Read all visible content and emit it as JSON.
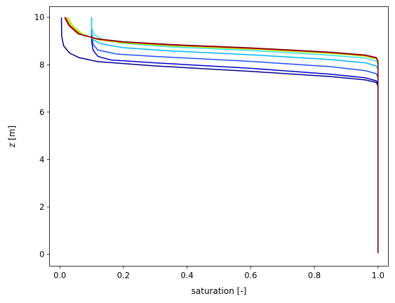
{
  "chart_data": {
    "type": "line",
    "xlabel": "saturation [-]",
    "ylabel": "z [m]",
    "xlim": [
      -0.0325,
      1.0325
    ],
    "ylim": [
      -0.5,
      10.45
    ],
    "grid": false,
    "x_ticks": [
      0.0,
      0.2,
      0.4,
      0.6,
      0.8,
      1.0
    ],
    "x_tick_labels": [
      "0.0",
      "0.2",
      "0.4",
      "0.6",
      "0.8",
      "1.0"
    ],
    "y_ticks": [
      0,
      2,
      4,
      6,
      8,
      10
    ],
    "y_tick_labels": [
      "0",
      "2",
      "4",
      "6",
      "8",
      "10"
    ],
    "series": [
      {
        "color": "#00008b",
        "points": [
          [
            0.005,
            10.0
          ],
          [
            0.006,
            9.2
          ],
          [
            0.012,
            8.8
          ],
          [
            0.03,
            8.5
          ],
          [
            0.06,
            8.3
          ],
          [
            0.12,
            8.13
          ],
          [
            0.3,
            7.95
          ],
          [
            0.6,
            7.72
          ],
          [
            0.85,
            7.5
          ],
          [
            0.96,
            7.36
          ],
          [
            0.995,
            7.25
          ],
          [
            1.0,
            7.1
          ],
          [
            1.0,
            0.05
          ]
        ]
      },
      {
        "color": "#0000cd",
        "points": [
          [
            0.1,
            10.0
          ],
          [
            0.1,
            9.0
          ],
          [
            0.105,
            8.6
          ],
          [
            0.12,
            8.35
          ],
          [
            0.16,
            8.2
          ],
          [
            0.3,
            8.08
          ],
          [
            0.6,
            7.85
          ],
          [
            0.85,
            7.6
          ],
          [
            0.96,
            7.45
          ],
          [
            0.995,
            7.32
          ],
          [
            1.0,
            7.2
          ],
          [
            1.0,
            0.05
          ]
        ]
      },
      {
        "color": "#1e50ff",
        "points": [
          [
            0.1,
            10.0
          ],
          [
            0.1,
            9.2
          ],
          [
            0.105,
            8.85
          ],
          [
            0.12,
            8.62
          ],
          [
            0.18,
            8.45
          ],
          [
            0.3,
            8.35
          ],
          [
            0.6,
            8.14
          ],
          [
            0.85,
            7.92
          ],
          [
            0.96,
            7.75
          ],
          [
            0.995,
            7.62
          ],
          [
            1.0,
            7.45
          ],
          [
            1.0,
            0.05
          ]
        ]
      },
      {
        "color": "#00b4ff",
        "points": [
          [
            0.1,
            10.0
          ],
          [
            0.1,
            9.4
          ],
          [
            0.105,
            9.05
          ],
          [
            0.13,
            8.88
          ],
          [
            0.2,
            8.72
          ],
          [
            0.35,
            8.58
          ],
          [
            0.6,
            8.42
          ],
          [
            0.85,
            8.22
          ],
          [
            0.96,
            8.08
          ],
          [
            0.995,
            7.95
          ],
          [
            1.0,
            7.8
          ],
          [
            1.0,
            0.05
          ]
        ]
      },
      {
        "color": "#40e0d0",
        "points": [
          [
            0.1,
            10.0
          ],
          [
            0.1,
            9.55
          ],
          [
            0.11,
            9.25
          ],
          [
            0.14,
            9.02
          ],
          [
            0.2,
            8.9
          ],
          [
            0.35,
            8.75
          ],
          [
            0.6,
            8.6
          ],
          [
            0.85,
            8.4
          ],
          [
            0.96,
            8.28
          ],
          [
            0.995,
            8.15
          ],
          [
            1.0,
            8.0
          ],
          [
            1.0,
            0.05
          ]
        ]
      },
      {
        "color": "#7cfc00",
        "points": [
          [
            0.025,
            10.0
          ],
          [
            0.04,
            9.65
          ],
          [
            0.07,
            9.3
          ],
          [
            0.12,
            9.05
          ],
          [
            0.2,
            8.92
          ],
          [
            0.35,
            8.8
          ],
          [
            0.6,
            8.66
          ],
          [
            0.85,
            8.48
          ],
          [
            0.96,
            8.36
          ],
          [
            0.995,
            8.25
          ],
          [
            1.0,
            8.1
          ],
          [
            1.0,
            0.05
          ]
        ]
      },
      {
        "color": "#ffd700",
        "points": [
          [
            0.02,
            10.0
          ],
          [
            0.035,
            9.65
          ],
          [
            0.065,
            9.3
          ],
          [
            0.12,
            9.06
          ],
          [
            0.2,
            8.94
          ],
          [
            0.35,
            8.82
          ],
          [
            0.6,
            8.68
          ],
          [
            0.85,
            8.5
          ],
          [
            0.96,
            8.38
          ],
          [
            0.995,
            8.27
          ],
          [
            1.0,
            8.12
          ],
          [
            1.0,
            0.05
          ]
        ]
      },
      {
        "color": "#ff4500",
        "points": [
          [
            0.018,
            10.0
          ],
          [
            0.032,
            9.65
          ],
          [
            0.062,
            9.3
          ],
          [
            0.12,
            9.07
          ],
          [
            0.2,
            8.95
          ],
          [
            0.35,
            8.83
          ],
          [
            0.6,
            8.69
          ],
          [
            0.85,
            8.51
          ],
          [
            0.96,
            8.39
          ],
          [
            0.995,
            8.28
          ],
          [
            1.0,
            8.13
          ],
          [
            1.0,
            0.05
          ]
        ]
      },
      {
        "color": "#b22222",
        "points": [
          [
            0.016,
            10.0
          ],
          [
            0.03,
            9.65
          ],
          [
            0.06,
            9.3
          ],
          [
            0.12,
            9.08
          ],
          [
            0.2,
            8.96
          ],
          [
            0.35,
            8.84
          ],
          [
            0.6,
            8.7
          ],
          [
            0.85,
            8.52
          ],
          [
            0.96,
            8.4
          ],
          [
            0.995,
            8.29
          ],
          [
            1.0,
            8.14
          ],
          [
            1.0,
            0.05
          ]
        ]
      },
      {
        "color": "#800000",
        "points": [
          [
            0.015,
            10.0
          ],
          [
            0.029,
            9.65
          ],
          [
            0.058,
            9.3
          ],
          [
            0.12,
            9.09
          ],
          [
            0.2,
            8.97
          ],
          [
            0.35,
            8.85
          ],
          [
            0.6,
            8.71
          ],
          [
            0.85,
            8.53
          ],
          [
            0.96,
            8.41
          ],
          [
            0.995,
            8.3
          ],
          [
            1.0,
            8.15
          ],
          [
            1.0,
            0.05
          ]
        ]
      }
    ]
  }
}
